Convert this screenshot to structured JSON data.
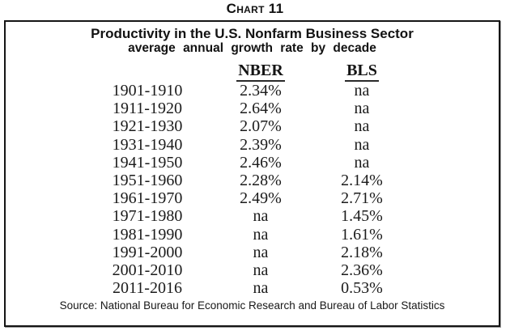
{
  "chart_label": "Chart 11",
  "chart_data": {
    "type": "table",
    "title": "Productivity in the U.S. Nonfarm Business Sector",
    "subtitle": "average annual growth rate by decade",
    "columns": [
      "NBER",
      "BLS"
    ],
    "rows": [
      {
        "decade": "1901-1910",
        "nber": "2.34%",
        "bls": "na"
      },
      {
        "decade": "1911-1920",
        "nber": "2.64%",
        "bls": "na"
      },
      {
        "decade": "1921-1930",
        "nber": "2.07%",
        "bls": "na"
      },
      {
        "decade": "1931-1940",
        "nber": "2.39%",
        "bls": "na"
      },
      {
        "decade": "1941-1950",
        "nber": "2.46%",
        "bls": "na"
      },
      {
        "decade": "1951-1960",
        "nber": "2.28%",
        "bls": "2.14%"
      },
      {
        "decade": "1961-1970",
        "nber": "2.49%",
        "bls": "2.71%"
      },
      {
        "decade": "1971-1980",
        "nber": "na",
        "bls": "1.45%"
      },
      {
        "decade": "1981-1990",
        "nber": "na",
        "bls": "1.61%"
      },
      {
        "decade": "1991-2000",
        "nber": "na",
        "bls": "2.18%"
      },
      {
        "decade": "2001-2010",
        "nber": "na",
        "bls": "2.36%"
      },
      {
        "decade": "2011-2016",
        "nber": "na",
        "bls": "0.53%"
      }
    ],
    "source": "Source: National Bureau for Economic Research and Bureau of Labor Statistics",
    "colors": {
      "text": "#1b1b1b",
      "border": "#151515",
      "background": "#ffffff"
    }
  }
}
